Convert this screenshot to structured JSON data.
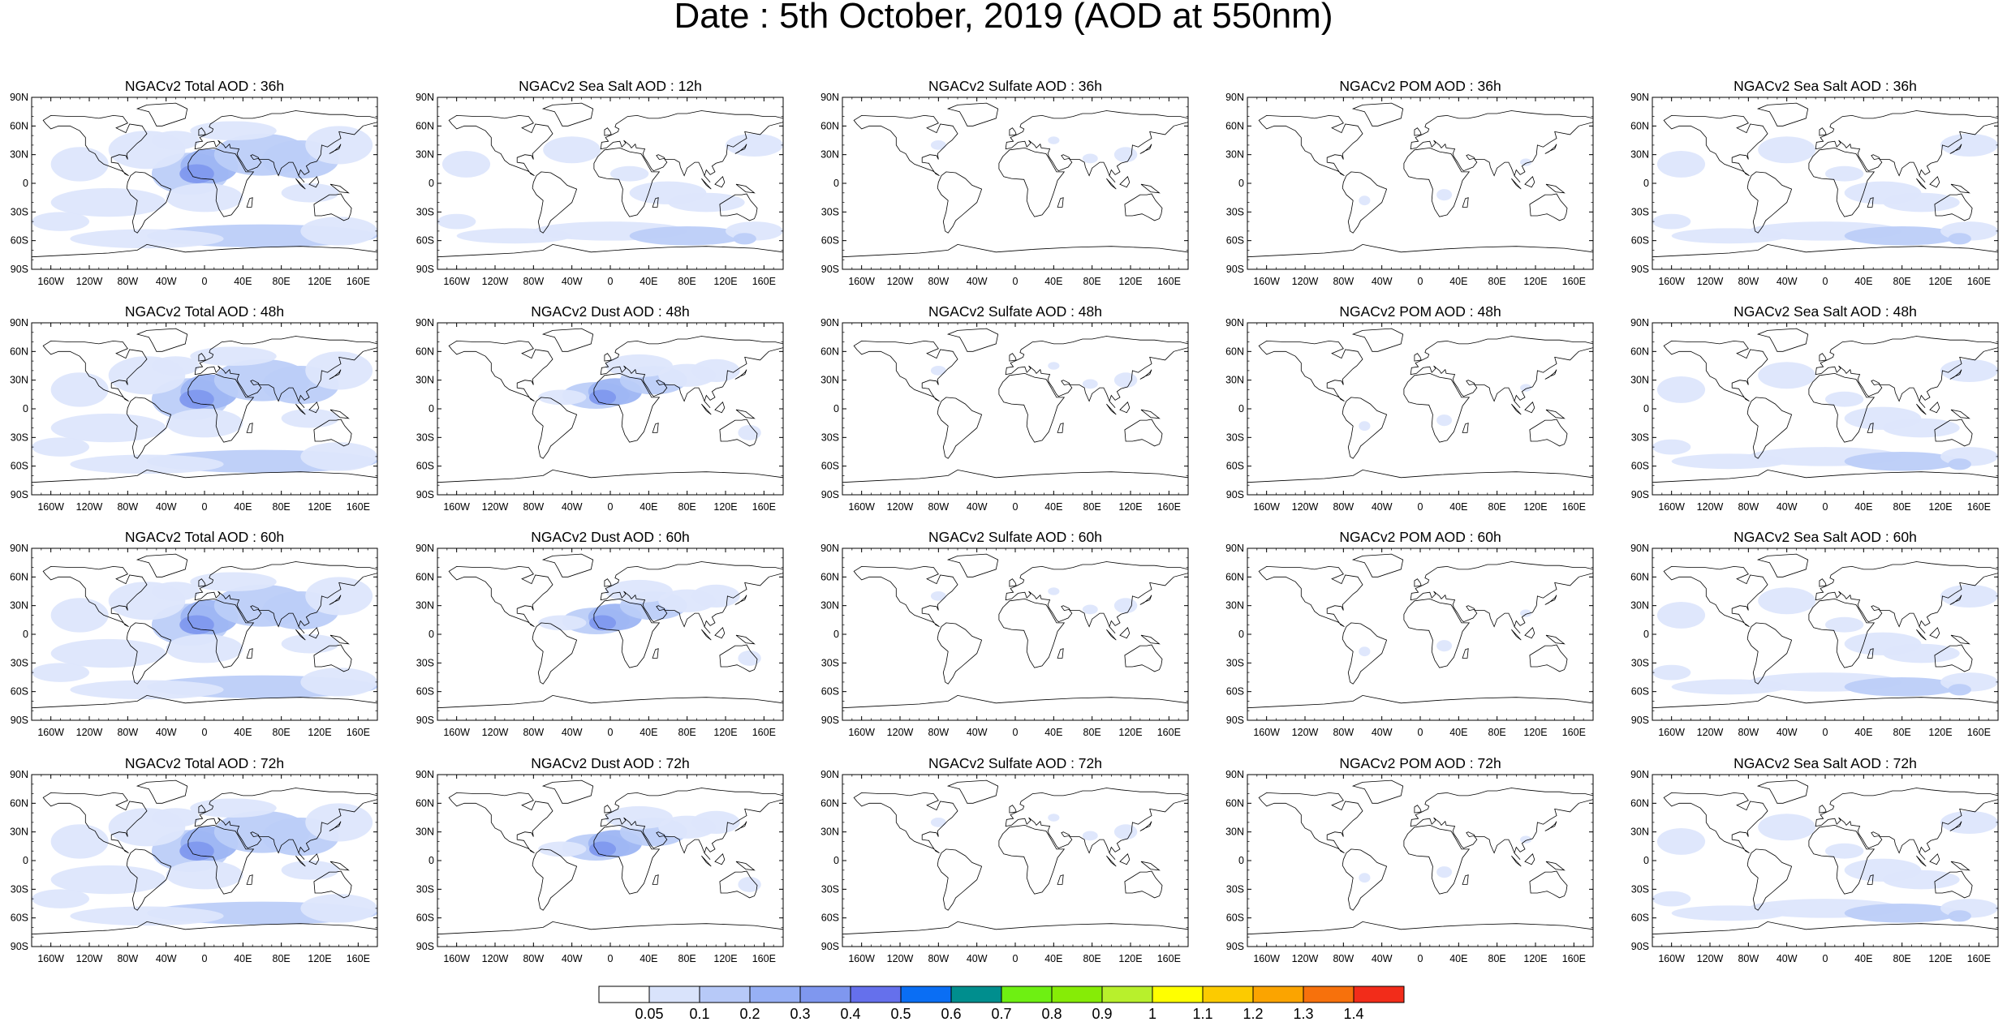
{
  "title": "Date : 5th October, 2019 (AOD at 550nm)",
  "panels": [
    [
      "NGACv2 Total AOD : 36h",
      "NGACv2 Sea Salt  AOD : 12h",
      "NGACv2 Sulfate AOD : 36h",
      "NGACv2 POM AOD : 36h",
      "NGACv2 Sea Salt AOD : 36h"
    ],
    [
      "NGACv2 Total AOD : 48h",
      "NGACv2 Dust AOD : 48h",
      "NGACv2 Sulfate AOD : 48h",
      "NGACv2 POM AOD : 48h",
      "NGACv2 Sea Salt AOD : 48h"
    ],
    [
      "NGACv2 Total AOD : 60h",
      "NGACv2 Dust AOD : 60h",
      "NGACv2 Sulfate AOD : 60h",
      "NGACv2 POM AOD : 60h",
      "NGACv2 Sea Salt AOD : 60h"
    ],
    [
      "NGACv2 Total AOD : 72h",
      "NGACv2 Dust AOD : 72h",
      "NGACv2 Sulfate AOD : 72h",
      "NGACv2 POM AOD : 72h",
      "NGACv2 Sea Salt  AOD : 72h"
    ]
  ],
  "lat_ticks": [
    "90N",
    "60N",
    "30N",
    "0",
    "30S",
    "60S",
    "90S"
  ],
  "lon_ticks": [
    "160W",
    "120W",
    "80W",
    "40W",
    "0",
    "40E",
    "80E",
    "120E",
    "160E"
  ],
  "colorbar": {
    "labels": [
      "0.05",
      "0.1",
      "0.2",
      "0.3",
      "0.4",
      "0.5",
      "0.6",
      "0.7",
      "0.8",
      "0.9",
      "1",
      "1.1",
      "1.2",
      "1.3",
      "1.4"
    ],
    "colors": [
      "#ffffff",
      "#d9e3fb",
      "#b7c9f8",
      "#97b0f5",
      "#7f97ef",
      "#6570ec",
      "#0a6ef4",
      "#008e8e",
      "#6ef012",
      "#86ec06",
      "#b8f02c",
      "#ffff00",
      "#fccb00",
      "#fba400",
      "#f7710c",
      "#f22c1a"
    ]
  },
  "style": {
    "land_outline": "#000000",
    "aerosol_shades": [
      "#dde6fc",
      "#bccdf8",
      "#9db5f3",
      "#7f98ee"
    ]
  }
}
